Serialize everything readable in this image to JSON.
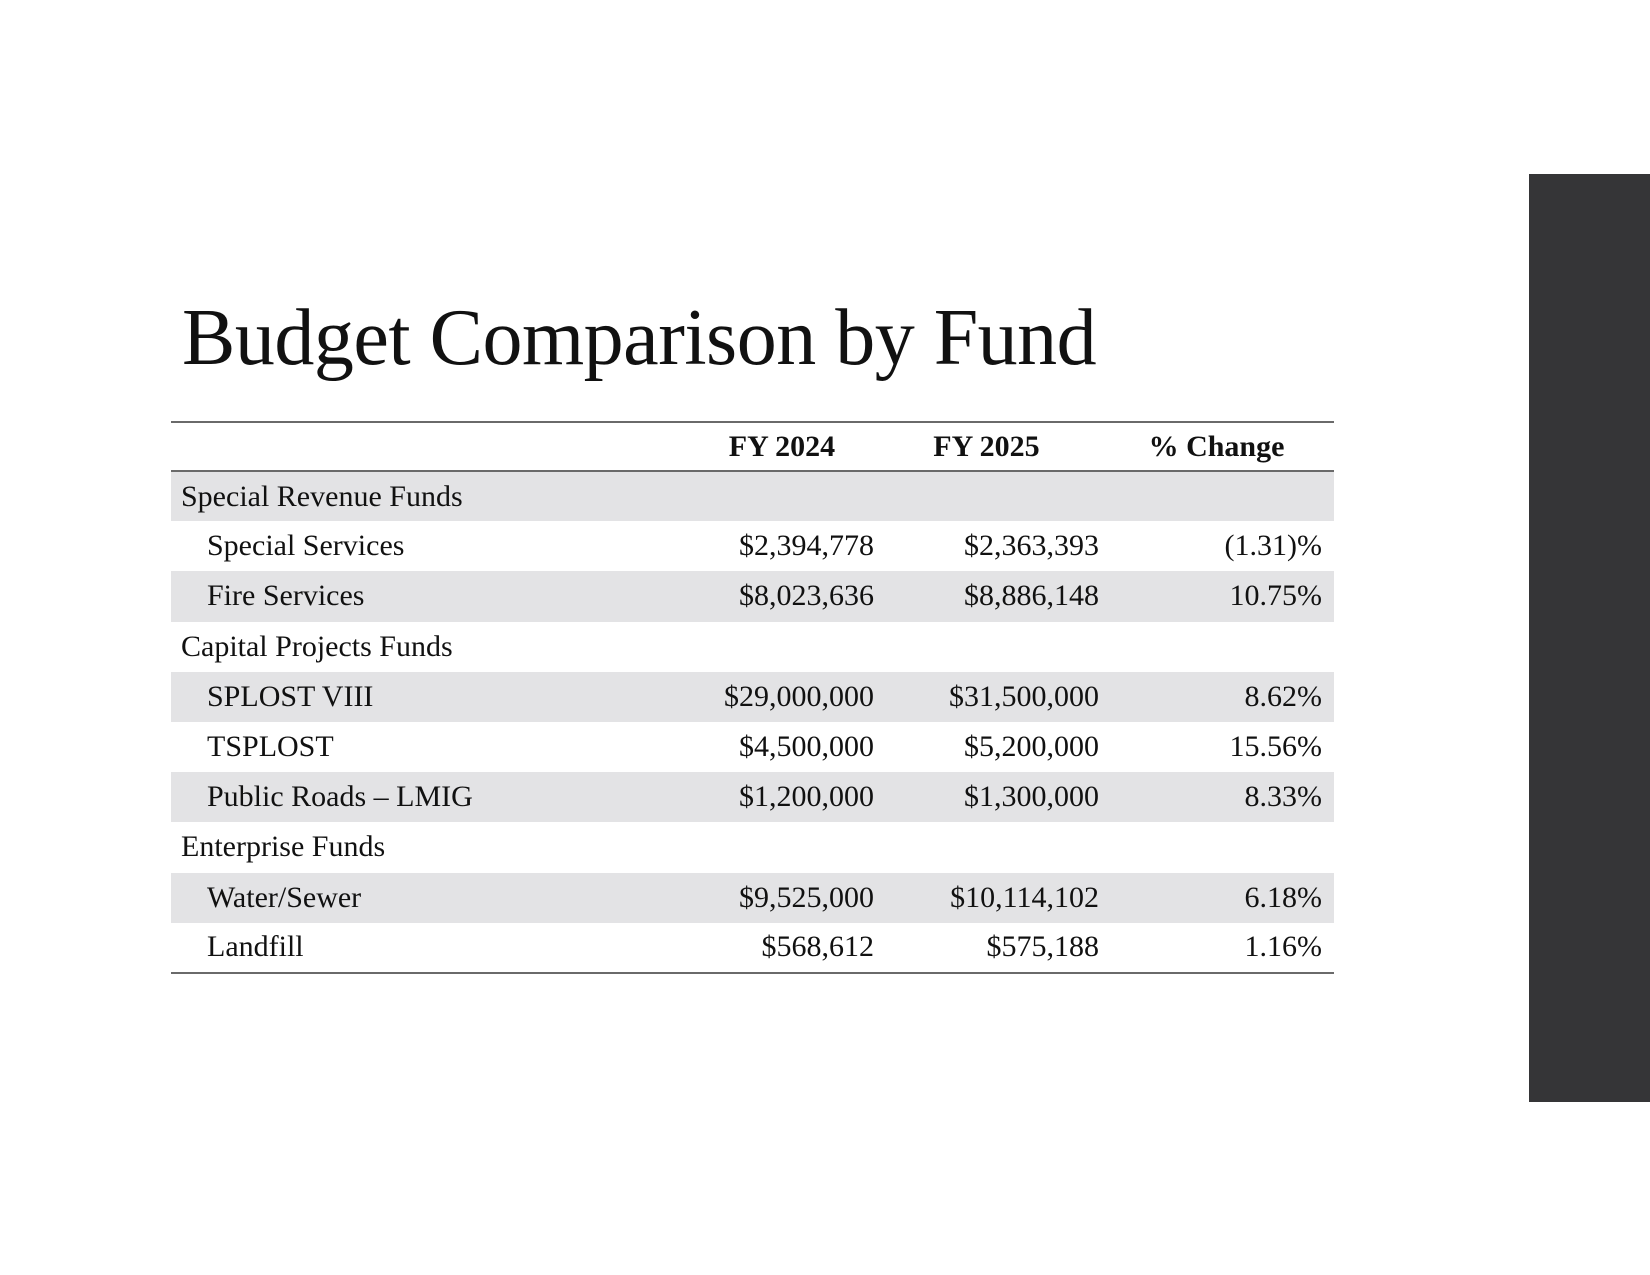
{
  "title": "Budget Comparison by Fund",
  "colors": {
    "sidebar": "#353537",
    "row_shade": "#e3e3e5"
  },
  "table": {
    "headers": [
      "",
      "FY 2024",
      "FY 2025",
      "% Change"
    ],
    "rows": [
      {
        "type": "group",
        "label": "Special Revenue Funds",
        "fy2024": "",
        "fy2025": "",
        "change": ""
      },
      {
        "type": "item",
        "label": "Special Services",
        "fy2024": "$2,394,778",
        "fy2025": "$2,363,393",
        "change": "(1.31)%"
      },
      {
        "type": "item",
        "label": "Fire Services",
        "fy2024": "$8,023,636",
        "fy2025": "$8,886,148",
        "change": "10.75%"
      },
      {
        "type": "group",
        "label": "Capital Projects Funds",
        "fy2024": "",
        "fy2025": "",
        "change": ""
      },
      {
        "type": "item",
        "label": "SPLOST VIII",
        "fy2024": "$29,000,000",
        "fy2025": "$31,500,000",
        "change": "8.62%"
      },
      {
        "type": "item",
        "label": "TSPLOST",
        "fy2024": "$4,500,000",
        "fy2025": "$5,200,000",
        "change": "15.56%"
      },
      {
        "type": "item",
        "label": "Public Roads – LMIG",
        "fy2024": "$1,200,000",
        "fy2025": "$1,300,000",
        "change": "8.33%"
      },
      {
        "type": "group",
        "label": "Enterprise Funds",
        "fy2024": "",
        "fy2025": "",
        "change": ""
      },
      {
        "type": "item",
        "label": "Water/Sewer",
        "fy2024": "$9,525,000",
        "fy2025": "$10,114,102",
        "change": "6.18%"
      },
      {
        "type": "item",
        "label": "Landfill",
        "fy2024": "$568,612",
        "fy2025": "$575,188",
        "change": "1.16%"
      }
    ]
  }
}
